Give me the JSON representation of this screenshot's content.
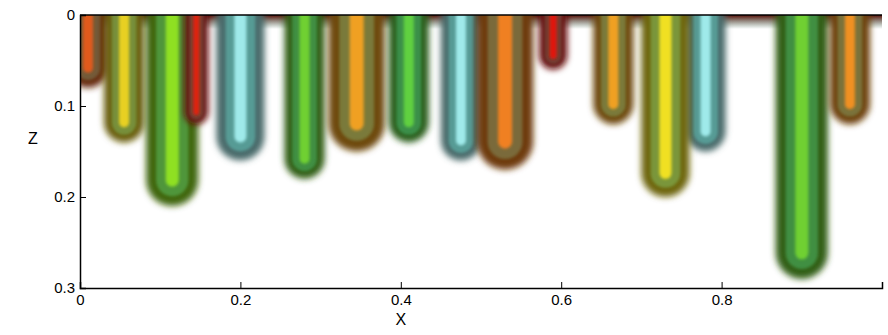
{
  "chart_data": {
    "type": "plume",
    "x_label": "X",
    "y_label": "Z",
    "xlim": [
      0,
      1
    ],
    "ylim": [
      0,
      0.3
    ],
    "xticks": [
      0,
      0.2,
      0.4,
      0.6,
      0.8
    ],
    "yticks": [
      0,
      0.1,
      0.2,
      0.3
    ],
    "x": [
      0.2,
      0.475,
      0.78,
      0.01,
      0.055,
      0.115,
      0.145,
      0.28,
      0.345,
      0.41,
      0.53,
      0.59,
      0.665,
      0.73,
      0.9,
      0.96
    ],
    "values": [
      0.16,
      0.16,
      0.15,
      0.08,
      0.14,
      0.21,
      0.12,
      0.18,
      0.15,
      0.14,
      0.17,
      0.06,
      0.12,
      0.2,
      0.29,
      0.12
    ],
    "width": [
      0.06,
      0.05,
      0.05,
      0.05,
      0.05,
      0.065,
      0.03,
      0.05,
      0.07,
      0.05,
      0.07,
      0.035,
      0.05,
      0.06,
      0.065,
      0.05
    ],
    "colors": [
      "#9feaea",
      "#9feaea",
      "#9feaea",
      "#e05a1a",
      "#e8d020",
      "#8fe020",
      "#e02010",
      "#70d030",
      "#f0a020",
      "#60d040",
      "#f08020",
      "#e01810",
      "#f0a020",
      "#f0e020",
      "#70d030",
      "#f09020"
    ]
  }
}
